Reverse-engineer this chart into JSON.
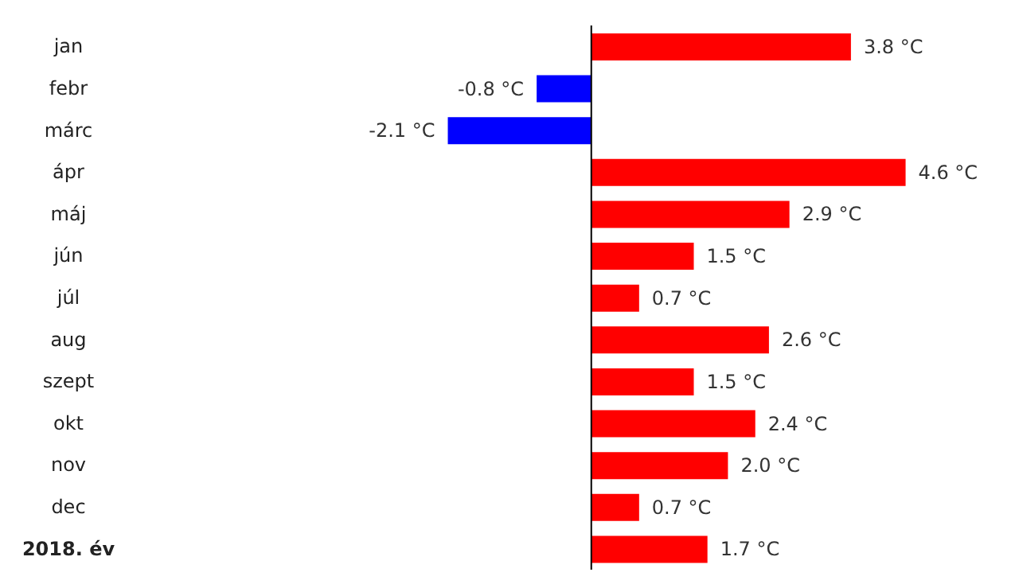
{
  "chart_data": {
    "type": "bar",
    "orientation": "horizontal",
    "categories": [
      "jan",
      "febr",
      "márc",
      "ápr",
      "máj",
      "jún",
      "júl",
      "aug",
      "szept",
      "okt",
      "nov",
      "dec",
      "2018. év"
    ],
    "values": [
      3.8,
      -0.8,
      -2.1,
      4.6,
      2.9,
      1.5,
      0.7,
      2.6,
      1.5,
      2.4,
      2.0,
      0.7,
      1.7
    ],
    "colors": [
      "#ff0000",
      "#0000ff",
      "#0000ff",
      "#ff0000",
      "#ff0000",
      "#ff0000",
      "#ff0000",
      "#ff0000",
      "#ff0000",
      "#ff0000",
      "#ff0000",
      "#ff0000",
      "#ff0000"
    ],
    "value_labels": [
      "3.8 °C",
      "-0.8 °C",
      "-2.1 °C",
      "4.6 °C",
      "2.9 °C",
      "1.5 °C",
      "0.7 °C",
      "2.6 °C",
      "1.5 °C",
      "2.4 °C",
      "2.0 °C",
      "0.7 °C",
      "1.7 °C"
    ],
    "tick_labels": "y"
  }
}
